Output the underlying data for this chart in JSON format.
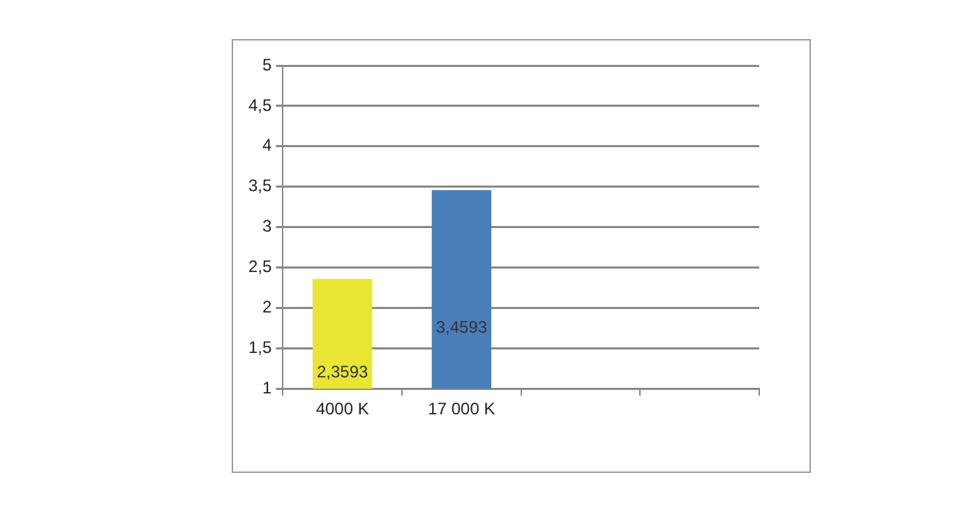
{
  "chart_data": {
    "type": "bar",
    "categories": [
      "4000 K",
      "17 000 K",
      null,
      null
    ],
    "values": [
      2.3593,
      3.4593,
      null,
      null
    ],
    "colors": [
      "#e8e633",
      "#4a7ebb",
      "#4a7ebb",
      "#4a7ebb"
    ],
    "value_labels": [
      "2,3593",
      "3,4593",
      null,
      null
    ],
    "ylim": [
      1,
      5
    ],
    "yticks": [
      1,
      {
        "value": 1.5,
        "label": "1,5"
      },
      2,
      {
        "value": 2.5,
        "label": "2,5"
      },
      3,
      {
        "value": 3.5,
        "label": "3,5"
      },
      4,
      {
        "value": 4.5,
        "label": "4,5"
      },
      5
    ],
    "grid": "y",
    "legend": false
  }
}
